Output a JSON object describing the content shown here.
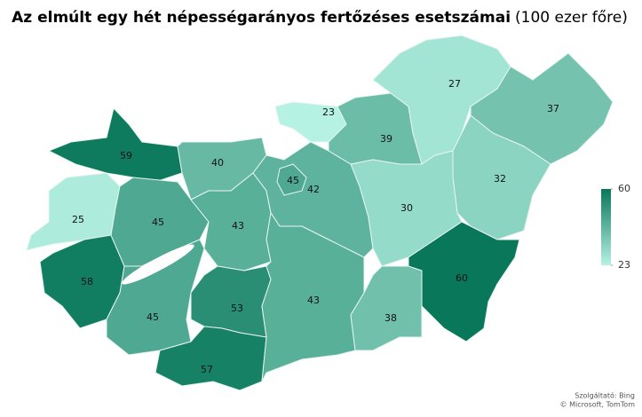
{
  "chart_data": {
    "type": "choropleth",
    "title": "Az elmúlt egy hét népességarányos fertőzéses esetszámai",
    "subtitle": "(100 ezer főre)",
    "values": [
      59,
      25,
      58,
      45,
      40,
      43,
      45,
      53,
      57,
      42,
      45,
      23,
      39,
      27,
      37,
      32,
      30,
      43,
      38,
      60
    ],
    "color_low": "#b6f2e3",
    "color_high": "#09775a",
    "clim": [
      23,
      60
    ],
    "cticks": [
      23,
      60
    ],
    "attribution": [
      "Szolgáltató: Bing",
      "© Microsoft, TomTom"
    ]
  }
}
